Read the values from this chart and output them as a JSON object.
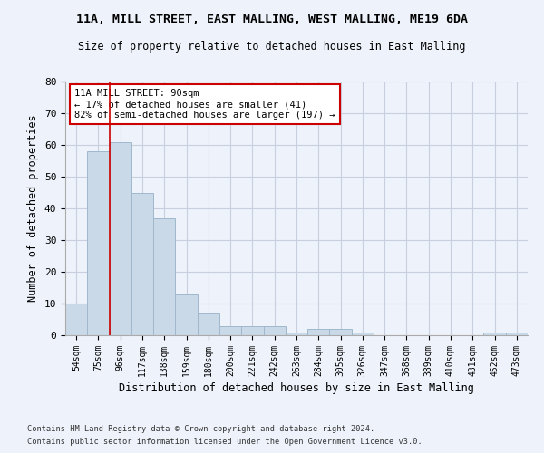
{
  "title1": "11A, MILL STREET, EAST MALLING, WEST MALLING, ME19 6DA",
  "title2": "Size of property relative to detached houses in East Malling",
  "xlabel": "Distribution of detached houses by size in East Malling",
  "ylabel": "Number of detached properties",
  "categories": [
    "54sqm",
    "75sqm",
    "96sqm",
    "117sqm",
    "138sqm",
    "159sqm",
    "180sqm",
    "200sqm",
    "221sqm",
    "242sqm",
    "263sqm",
    "284sqm",
    "305sqm",
    "326sqm",
    "347sqm",
    "368sqm",
    "389sqm",
    "410sqm",
    "431sqm",
    "452sqm",
    "473sqm"
  ],
  "values": [
    10,
    58,
    61,
    45,
    37,
    13,
    7,
    3,
    3,
    3,
    1,
    2,
    2,
    1,
    0,
    0,
    0,
    0,
    0,
    1,
    1
  ],
  "bar_color": "#c9d9e8",
  "bar_edge_color": "#a0b8cc",
  "grid_color": "#c8d0e0",
  "background_color": "#eef2fa",
  "red_line_x": 1.5,
  "annotation_text": "11A MILL STREET: 90sqm\n← 17% of detached houses are smaller (41)\n82% of semi-detached houses are larger (197) →",
  "annotation_box_color": "#ffffff",
  "annotation_box_edge": "#cc0000",
  "footnote1": "Contains HM Land Registry data © Crown copyright and database right 2024.",
  "footnote2": "Contains public sector information licensed under the Open Government Licence v3.0.",
  "ylim": [
    0,
    80
  ],
  "yticks": [
    0,
    10,
    20,
    30,
    40,
    50,
    60,
    70,
    80
  ]
}
